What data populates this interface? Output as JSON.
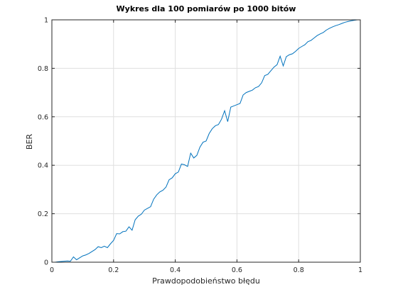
{
  "chart_data": {
    "type": "line",
    "title": "Wykres dla 100 pomiarów po 1000 bitów",
    "xlabel": "Prawdopodobieństwo błędu",
    "ylabel": "BER",
    "xlim": [
      0,
      1
    ],
    "ylim": [
      0,
      1
    ],
    "xticks": [
      "0",
      "0.2",
      "0.4",
      "0.6",
      "0.8",
      "1"
    ],
    "yticks": [
      "0",
      "0.2",
      "0.4",
      "0.6",
      "0.8",
      "1"
    ],
    "grid": true,
    "series": [
      {
        "color": "#0072bd",
        "x": [
          0.0,
          0.01,
          0.02,
          0.03,
          0.04,
          0.05,
          0.06,
          0.07,
          0.08,
          0.09,
          0.1,
          0.11,
          0.12,
          0.13,
          0.14,
          0.15,
          0.16,
          0.17,
          0.18,
          0.19,
          0.2,
          0.21,
          0.22,
          0.23,
          0.24,
          0.25,
          0.26,
          0.27,
          0.28,
          0.29,
          0.3,
          0.31,
          0.32,
          0.33,
          0.34,
          0.35,
          0.36,
          0.37,
          0.38,
          0.39,
          0.4,
          0.41,
          0.42,
          0.43,
          0.44,
          0.45,
          0.46,
          0.47,
          0.48,
          0.49,
          0.5,
          0.51,
          0.52,
          0.53,
          0.54,
          0.55,
          0.56,
          0.57,
          0.58,
          0.59,
          0.6,
          0.61,
          0.62,
          0.63,
          0.64,
          0.65,
          0.66,
          0.67,
          0.68,
          0.69,
          0.7,
          0.71,
          0.72,
          0.73,
          0.74,
          0.75,
          0.76,
          0.77,
          0.78,
          0.79,
          0.8,
          0.81,
          0.82,
          0.83,
          0.84,
          0.85,
          0.86,
          0.87,
          0.88,
          0.89,
          0.9,
          0.91,
          0.92,
          0.93,
          0.94,
          0.95,
          0.96,
          0.97,
          0.98,
          0.99,
          1.0
        ],
        "y": [
          0.0,
          0.0,
          0.002,
          0.003,
          0.004,
          0.005,
          0.004,
          0.022,
          0.01,
          0.018,
          0.026,
          0.03,
          0.036,
          0.044,
          0.052,
          0.064,
          0.06,
          0.066,
          0.06,
          0.076,
          0.09,
          0.118,
          0.117,
          0.126,
          0.128,
          0.146,
          0.132,
          0.175,
          0.19,
          0.198,
          0.215,
          0.222,
          0.229,
          0.26,
          0.278,
          0.29,
          0.297,
          0.31,
          0.34,
          0.348,
          0.365,
          0.372,
          0.405,
          0.402,
          0.395,
          0.45,
          0.43,
          0.441,
          0.475,
          0.495,
          0.5,
          0.531,
          0.551,
          0.563,
          0.568,
          0.59,
          0.625,
          0.58,
          0.64,
          0.645,
          0.65,
          0.655,
          0.69,
          0.7,
          0.705,
          0.71,
          0.72,
          0.725,
          0.74,
          0.77,
          0.775,
          0.79,
          0.805,
          0.815,
          0.85,
          0.81,
          0.848,
          0.856,
          0.86,
          0.87,
          0.882,
          0.89,
          0.897,
          0.91,
          0.915,
          0.925,
          0.935,
          0.942,
          0.948,
          0.958,
          0.965,
          0.971,
          0.976,
          0.98,
          0.985,
          0.99,
          0.993,
          0.996,
          0.998,
          1.0,
          1.0
        ]
      }
    ]
  }
}
